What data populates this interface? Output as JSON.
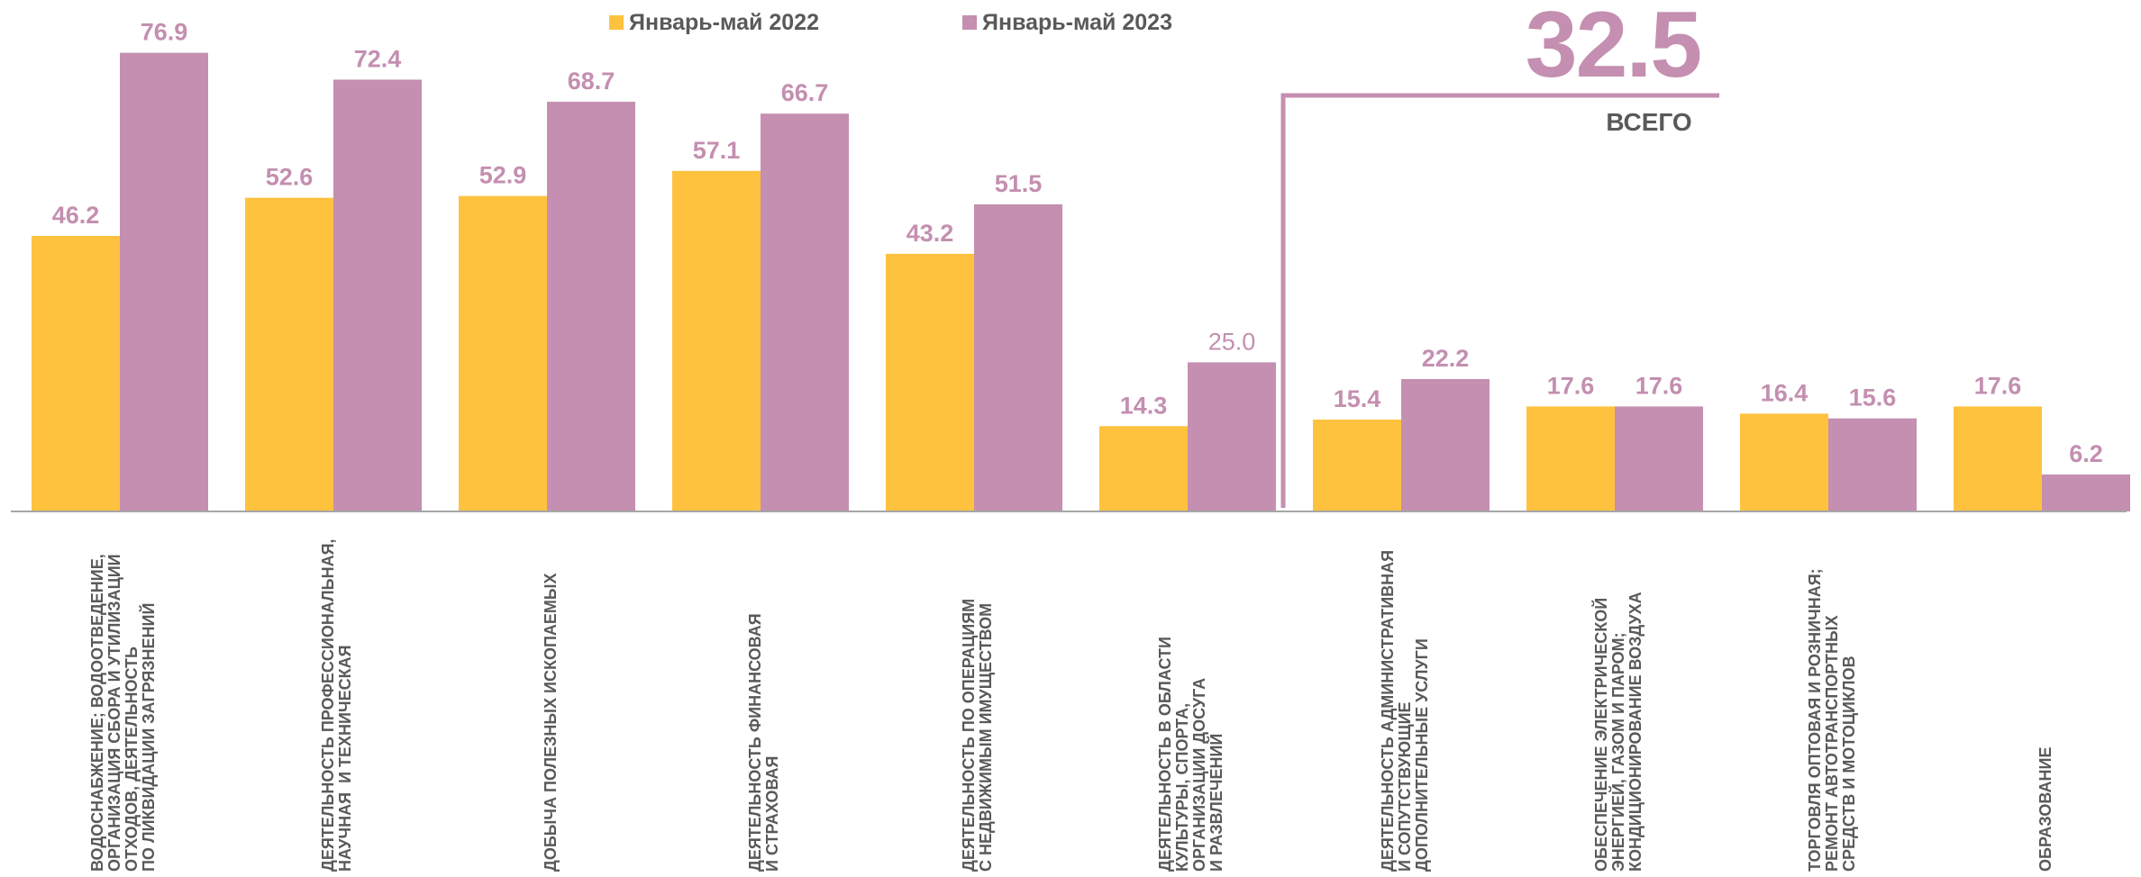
{
  "legend": {
    "series_2022": "Январь-май 2022",
    "series_2023": "Январь-май 2023"
  },
  "total": {
    "value": "32.5",
    "label": "ВСЕГО"
  },
  "colors": {
    "series_2022": "#ffc23f",
    "series_2023": "#c48fb0",
    "axis": "#a6a6a6",
    "text": "#595959"
  },
  "chart_data": {
    "type": "bar",
    "ylim": [
      0,
      85
    ],
    "categories": [
      "ВОДОСНАБЖЕНИЕ; ВОДООТВЕДЕНИЕ,\nОРГАНИЗАЦИЯ СБОРА И УТИЛИЗАЦИИ\nОТХОДОВ, ДЕЯТЕЛЬНОСТЬ\nПО ЛИКВИДАЦИИ ЗАГРЯЗНЕНИЙ",
      "ДЕЯТЕЛЬНОСТЬ ПРОФЕССИОНАЛЬНАЯ,\nНАУЧНАЯ  И ТЕХНИЧЕСКАЯ",
      "ДОБЫЧА ПОЛЕЗНЫХ ИСКОПАЕМЫХ",
      "ДЕЯТЕЛЬНОСТЬ ФИНАНСОВАЯ\nИ СТРАХОВАЯ",
      "ДЕЯТЕЛЬНОСТЬ ПО ОПЕРАЦИЯМ\nС НЕДВИЖИМЫМ ИМУЩЕСТВОМ",
      "ДЕЯТЕЛЬНОСТЬ В ОБЛАСТИ\nКУЛЬТУРЫ, СПОРТА,\nОРГАНИЗАЦИИ ДОСУГА\nИ РАЗВЛЕЧЕНИЙ",
      "ДЕЯТЕЛЬНОСТЬ АДМИНИСТРАТИВНАЯ\nИ СОПУТСТВУЮЩИЕ\nДОПОЛНИТЕЛЬНЫЕ УСЛУГИ",
      "ОБЕСПЕЧЕНИЕ ЭЛЕКТРИЧЕСКОЙ\nЭНЕРГИЕЙ, ГАЗОМ И ПАРОМ;\nКОНДИЦИОНИРОВАНИЕ ВОЗДУХА",
      "ТОРГОВЛЯ ОПТОВАЯ И РОЗНИЧНАЯ;\nРЕМОНТ АВТОТРАНСПОРТНЫХ\nСРЕДСТВ И МОТОЦИКЛОВ",
      "ОБРАЗОВАНИЕ"
    ],
    "series": [
      {
        "name": "Январь-май 2022",
        "values": [
          46.2,
          52.6,
          52.9,
          57.1,
          43.2,
          14.3,
          15.4,
          17.6,
          16.4,
          17.6
        ],
        "labels": [
          "46.2",
          "52.6",
          "52.9",
          "57.1",
          "43.2",
          "14.3",
          "15.4",
          "17.6",
          "16.4",
          "17.6"
        ]
      },
      {
        "name": "Январь-май 2023",
        "values": [
          76.9,
          72.4,
          68.7,
          66.7,
          51.5,
          25.0,
          22.2,
          17.6,
          15.6,
          6.2
        ],
        "labels": [
          "76.9",
          "72.4",
          "68.7",
          "66.7",
          "51.5",
          "25.0",
          "22.2",
          "17.6",
          "15.6",
          "6.2"
        ]
      }
    ],
    "grid": false,
    "legend_position": "top"
  }
}
